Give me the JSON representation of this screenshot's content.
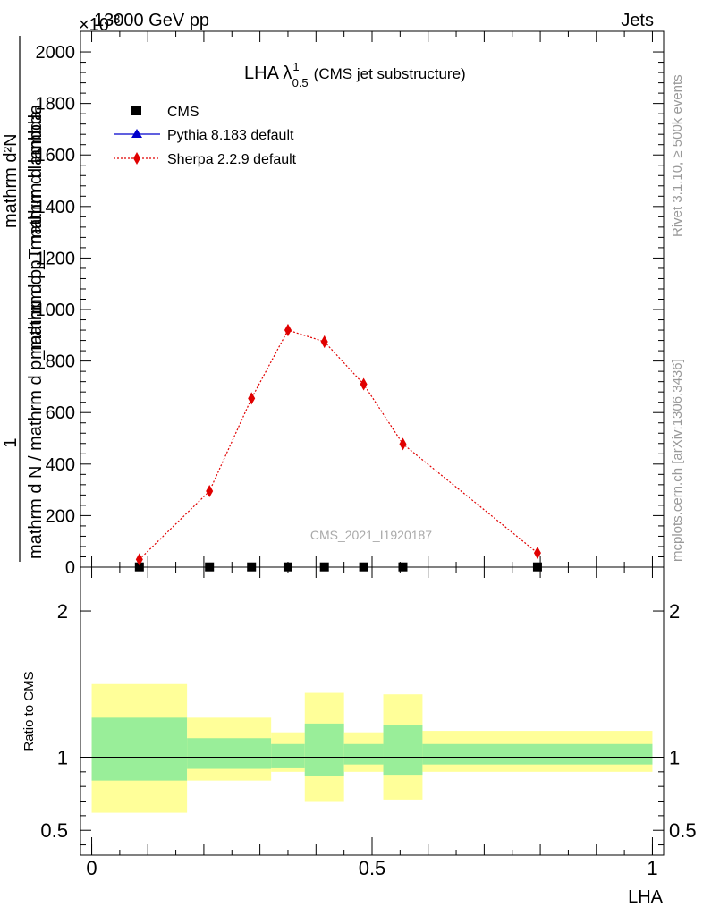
{
  "header": {
    "energy_label": "13000 GeV pp",
    "process_label": "Jets",
    "exponent_label": "×10",
    "exponent_power": "-3",
    "side_rivet": "Rivet 3.1.10, ≥ 500k events",
    "side_mcplots": "mcplots.cern.ch [arXiv:1306.3436]",
    "watermark": "CMS_2021_I1920187"
  },
  "chart_data": [
    {
      "type": "scatter",
      "panel": "main",
      "title_main": "LHA λ",
      "title_sup": "1",
      "title_sub": "0.5",
      "title_rest": "(CMS jet substructure)",
      "xlabel": "",
      "ylabel_num": "1",
      "ylabel_den": "mathrm d N / mathrm d p_mathrm d p_mathrm d lambda",
      "ylabel_upper": "mathrm d²N",
      "ylabel_upper_den": "mathrm d p_T mathrm d lambda",
      "xlim": [
        -0.02,
        1.02
      ],
      "ylim": [
        0,
        2080
      ],
      "yticks": [
        0,
        200,
        400,
        600,
        800,
        1000,
        1200,
        1400,
        1600,
        1800,
        2000
      ],
      "ytick_labels": [
        "0",
        "200",
        "400",
        "600",
        "800",
        "1000",
        "1200",
        "1400",
        "1600",
        "1800",
        "2000"
      ],
      "legend_position": "top-left",
      "series": [
        {
          "name": "CMS",
          "color": "#000000",
          "marker": "square",
          "x": [
            0.085,
            0.21,
            0.285,
            0.35,
            0.415,
            0.485,
            0.555,
            0.795
          ],
          "y": [
            1,
            1,
            1,
            1,
            1,
            1,
            1,
            1
          ]
        },
        {
          "name": "Pythia 8.183 default",
          "color": "#0000cc",
          "marker": "triangle",
          "x": [
            0.085,
            0.21,
            0.285,
            0.35,
            0.415,
            0.485,
            0.555,
            0.795
          ],
          "y": [
            1,
            1,
            1,
            1,
            1,
            1,
            1,
            1
          ]
        },
        {
          "name": "Sherpa 2.2.9 default",
          "color": "#e00000",
          "marker": "diamond",
          "x": [
            0.085,
            0.21,
            0.285,
            0.35,
            0.415,
            0.485,
            0.555,
            0.795
          ],
          "y": [
            30,
            295,
            655,
            920,
            875,
            710,
            478,
            55
          ],
          "err": [
            8,
            15,
            20,
            22,
            22,
            20,
            15,
            8
          ]
        }
      ]
    },
    {
      "type": "area",
      "panel": "ratio",
      "xlabel": "LHA",
      "ylabel": "Ratio to CMS",
      "xlim": [
        -0.02,
        1.02
      ],
      "ylim": [
        0.33,
        2.3
      ],
      "yticks": [
        0.5,
        1,
        2
      ],
      "ytick_labels": [
        "0.5",
        "1",
        "2"
      ],
      "xticks": [
        0,
        0.5,
        1
      ],
      "xtick_labels": [
        "0",
        "0.5",
        "1"
      ],
      "bands": [
        {
          "x0": 0.0,
          "x1": 0.17,
          "inner": [
            0.84,
            1.27
          ],
          "outer": [
            0.62,
            1.5
          ]
        },
        {
          "x0": 0.17,
          "x1": 0.32,
          "inner": [
            0.92,
            1.13
          ],
          "outer": [
            0.84,
            1.27
          ]
        },
        {
          "x0": 0.32,
          "x1": 0.38,
          "inner": [
            0.93,
            1.09
          ],
          "outer": [
            0.9,
            1.17
          ]
        },
        {
          "x0": 0.38,
          "x1": 0.45,
          "inner": [
            0.87,
            1.23
          ],
          "outer": [
            0.7,
            1.44
          ]
        },
        {
          "x0": 0.45,
          "x1": 0.52,
          "inner": [
            0.95,
            1.09
          ],
          "outer": [
            0.9,
            1.17
          ]
        },
        {
          "x0": 0.52,
          "x1": 0.59,
          "inner": [
            0.88,
            1.22
          ],
          "outer": [
            0.71,
            1.43
          ]
        },
        {
          "x0": 0.59,
          "x1": 1.0,
          "inner": [
            0.95,
            1.09
          ],
          "outer": [
            0.9,
            1.18
          ]
        }
      ],
      "colors": {
        "inner": "#99ee99",
        "outer": "#ffff99"
      }
    }
  ]
}
